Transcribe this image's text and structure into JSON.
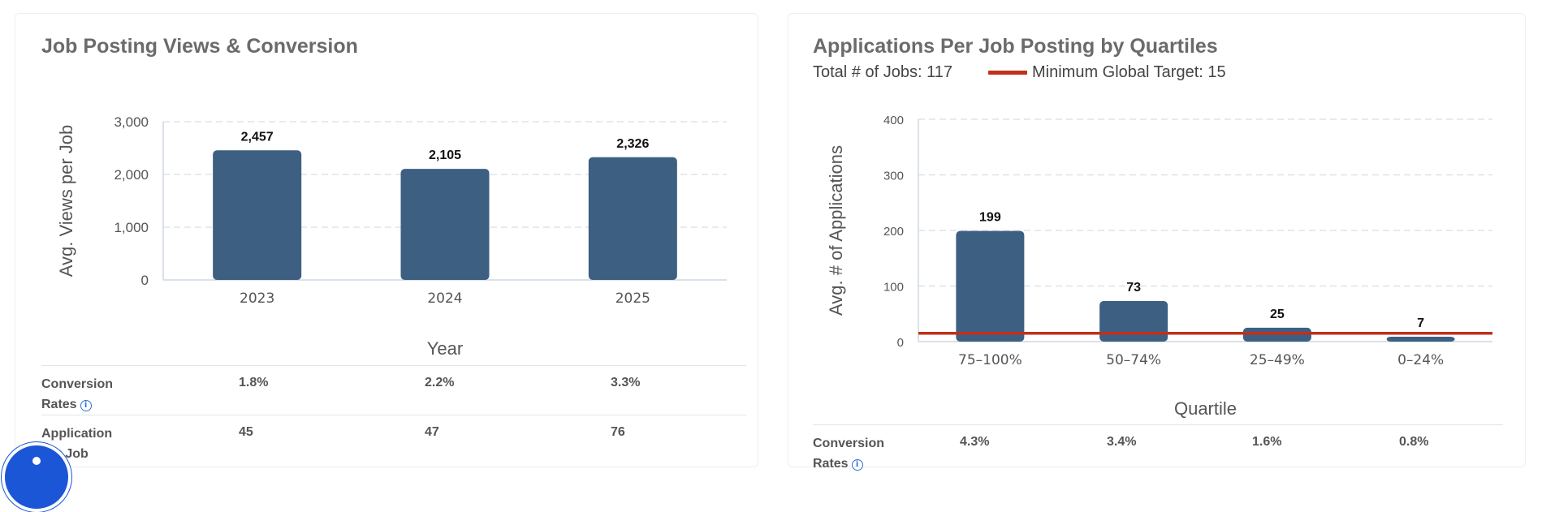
{
  "left_card": {
    "title": "Job Posting Views & Conversion",
    "table": {
      "rows": [
        {
          "label_lines": [
            "Conversion",
            "Rates"
          ],
          "has_info": true,
          "values": [
            "1.8%",
            "2.2%",
            "3.3%"
          ]
        },
        {
          "label_lines": [
            "Application",
            "per Job"
          ],
          "has_info": false,
          "values": [
            "45",
            "47",
            "76"
          ]
        }
      ]
    }
  },
  "right_card": {
    "title": "Applications Per Job Posting by Quartiles",
    "total_jobs": "Total # of Jobs: 117",
    "target_legend": "Minimum Global Target: 15",
    "table": {
      "rows": [
        {
          "label_lines": [
            "Conversion",
            "Rates"
          ],
          "has_info": true,
          "values": [
            "4.3%",
            "3.4%",
            "1.6%",
            "0.8%"
          ]
        }
      ]
    }
  },
  "colors": {
    "bar": "#3d5f82",
    "target_line": "#c0301a",
    "grid": "#dde3ec",
    "axis_text": "#555555"
  },
  "icons": {
    "info": "info-circle-icon",
    "accessibility": "accessibility-person-icon"
  },
  "info_glyph": "i",
  "chart_data": [
    {
      "type": "bar",
      "categories": [
        "2023",
        "2024",
        "2025"
      ],
      "values": [
        2457,
        2105,
        2326
      ],
      "data_labels": [
        "2,457",
        "2,105",
        "2,326"
      ],
      "yticks": [
        0,
        1000,
        2000,
        3000
      ],
      "ytick_labels": [
        "0",
        "1,000",
        "2,000",
        "3,000"
      ],
      "ylim": [
        0,
        3000
      ],
      "xlabel": "Year",
      "ylabel": "Avg. Views per Job",
      "grid": true
    },
    {
      "type": "bar",
      "categories": [
        "75–100%",
        "50–74%",
        "25–49%",
        "0–24%"
      ],
      "values": [
        199,
        73,
        25,
        7
      ],
      "data_labels": [
        "199",
        "73",
        "25",
        "7"
      ],
      "yticks": [
        0,
        100,
        200,
        300,
        400
      ],
      "ytick_labels": [
        "0",
        "100",
        "200",
        "300",
        "400"
      ],
      "ylim": [
        0,
        400
      ],
      "xlabel": "Quartile",
      "ylabel": "Avg. # of Applications",
      "grid": true,
      "reference_line": {
        "value": 15
      }
    }
  ]
}
